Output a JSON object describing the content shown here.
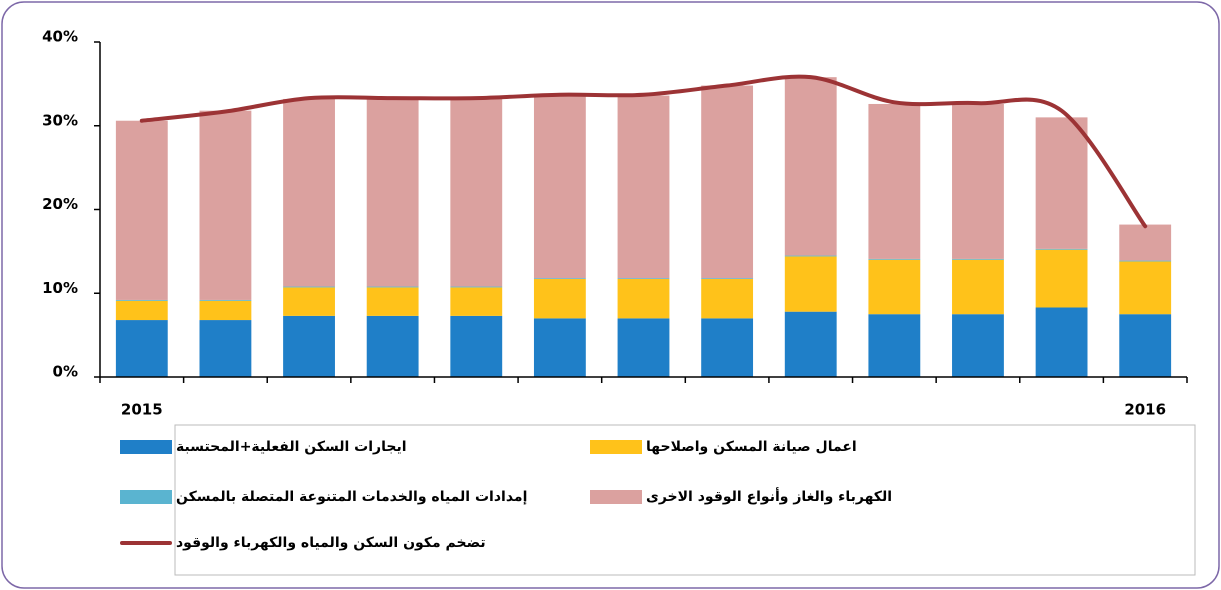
{
  "chart_data": {
    "type": "stacked_bar_line",
    "categories": [
      "2015",
      null,
      null,
      null,
      null,
      null,
      null,
      null,
      null,
      null,
      null,
      null,
      "2016"
    ],
    "series": [
      {
        "name": "ايجارات السكن الفعلية+المحتسبة",
        "color": "#1f7fc8",
        "values": [
          6.8,
          6.8,
          7.3,
          7.3,
          7.3,
          7.0,
          7.0,
          7.0,
          7.8,
          7.5,
          7.5,
          8.3,
          7.5
        ]
      },
      {
        "name": "اعمال صيانة المسكن واصلاحها",
        "color": "#ffc21a",
        "values": [
          2.3,
          2.3,
          3.4,
          3.4,
          3.4,
          4.7,
          4.7,
          4.7,
          6.6,
          6.5,
          6.5,
          6.9,
          6.3
        ]
      },
      {
        "name": "إمدادات المياه والخدمات المتنوعة المتصلة بالمسكن",
        "color": "#5ab4d0",
        "values": [
          0.1,
          0.1,
          0.1,
          0.1,
          0.1,
          0.1,
          0.1,
          0.1,
          0.1,
          0.1,
          0.1,
          0.1,
          0.1
        ]
      },
      {
        "name": "الكهرباء والغاز وأنواع الوقود الاخرى",
        "color": "#dba19f",
        "values": [
          21.4,
          22.6,
          22.4,
          22.4,
          22.4,
          21.8,
          21.8,
          23.0,
          21.3,
          18.5,
          18.5,
          15.7,
          4.3
        ]
      },
      {
        "name": "تضخم مكون السكن والمياه والكهرباء والوقود",
        "color": "#9c3335",
        "type": "line",
        "values": [
          30.6,
          31.7,
          33.3,
          33.3,
          33.3,
          33.7,
          33.7,
          34.8,
          35.8,
          32.8,
          32.7,
          31.8,
          18.0
        ]
      }
    ],
    "ylim": [
      0,
      40
    ],
    "yticks": [
      {
        "value": 0,
        "label": "0%"
      },
      {
        "value": 10,
        "label": "10%"
      },
      {
        "value": 20,
        "label": "20%"
      },
      {
        "value": 30,
        "label": "30%"
      },
      {
        "value": 40,
        "label": "40%"
      }
    ]
  }
}
